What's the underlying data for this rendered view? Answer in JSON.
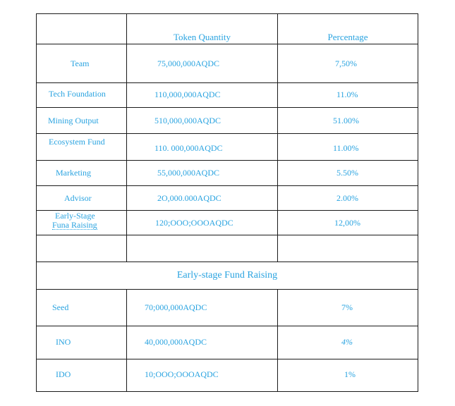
{
  "header": {
    "col2": "Token Quantity",
    "col3": "Percentage"
  },
  "rows": [
    {
      "name": "Team",
      "quantity": "75,000,000AQDC",
      "percentage": "7,50%"
    },
    {
      "name": "Tech Foundation",
      "quantity": "110,000,000AQDC",
      "percentage": "11.0%"
    },
    {
      "name": "Mining Output",
      "quantity": "510,000,000AQDC",
      "percentage": "51.00%"
    },
    {
      "name": "Ecosystem Fund",
      "quantity": "110. 000,000AQDC",
      "percentage": "11.00%"
    },
    {
      "name": "Marketing",
      "quantity": "55,000,000AQDC",
      "percentage": "5.50%"
    },
    {
      "name": "Advisor",
      "quantity": "2O,000.000AQDC",
      "percentage": "2.00%"
    },
    {
      "name_line1": "Early-Stage",
      "name_line2": "Funa Raising",
      "quantity": "120;OOO;OOOAQDC",
      "percentage": "12,00%"
    }
  ],
  "section_title": "Early-stage Fund Raising",
  "fund_rows": [
    {
      "name": "Seed",
      "quantity": "70;000,000AQDC",
      "percentage": "7%"
    },
    {
      "name": "INO",
      "quantity": "40,000,000AQDC",
      "percentage": "4%"
    },
    {
      "name": "IDO",
      "quantity": "10;OOO;OOOAQDC",
      "percentage": "1%"
    }
  ]
}
